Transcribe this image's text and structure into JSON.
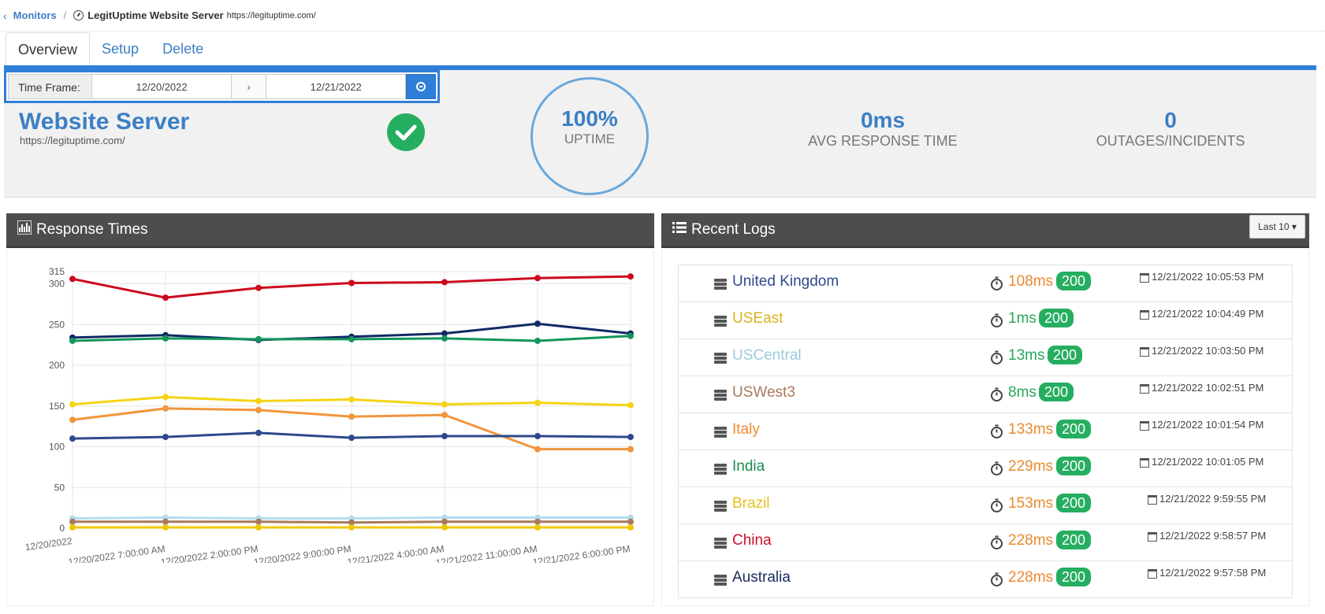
{
  "breadcrumb": {
    "back_link": "Monitors",
    "separator": "/",
    "title": "LegitUptime Website Server",
    "url": "https://legituptime.com/"
  },
  "tabs": [
    {
      "label": "Overview",
      "active": true
    },
    {
      "label": "Setup",
      "active": false
    },
    {
      "label": "Delete",
      "active": false
    }
  ],
  "timeframe": {
    "label": "Time Frame:",
    "start": "12/20/2022",
    "arrow": "›",
    "end": "12/21/2022"
  },
  "summary": {
    "name": "Website Server",
    "url": "https://legituptime.com/",
    "status": "up",
    "uptime_value": "100%",
    "uptime_label": "UPTIME",
    "avg_response_value": "0ms",
    "avg_response_label": "AVG RESPONSE TIME",
    "outages_value": "0",
    "outages_label": "OUTAGES/INCIDENTS"
  },
  "response_panel": {
    "title": "Response Times",
    "icon": "chart-icon"
  },
  "logs_panel": {
    "title": "Recent Logs",
    "icon": "list-icon",
    "filter": "Last 10 ▾"
  },
  "logs": [
    {
      "location": "United Kingdom",
      "loc_color": "#2e4a8c",
      "ms": "108ms",
      "ms_color": "#e88a2e",
      "code": "200",
      "time": "12/21/2022 10:05:53 PM"
    },
    {
      "location": "USEast",
      "loc_color": "#e0b020",
      "ms": "1ms",
      "ms_color": "#26a65b",
      "code": "200",
      "time": "12/21/2022 10:04:49 PM"
    },
    {
      "location": "USCentral",
      "loc_color": "#9ccbe0",
      "ms": "13ms",
      "ms_color": "#26a65b",
      "code": "200",
      "time": "12/21/2022 10:03:50 PM"
    },
    {
      "location": "USWest3",
      "loc_color": "#a87a5c",
      "ms": "8ms",
      "ms_color": "#26a65b",
      "code": "200",
      "time": "12/21/2022 10:02:51 PM"
    },
    {
      "location": "Italy",
      "loc_color": "#f08a2e",
      "ms": "133ms",
      "ms_color": "#e88a2e",
      "code": "200",
      "time": "12/21/2022 10:01:54 PM"
    },
    {
      "location": "India",
      "loc_color": "#1e8c4e",
      "ms": "229ms",
      "ms_color": "#e88a2e",
      "code": "200",
      "time": "12/21/2022 10:01:05 PM"
    },
    {
      "location": "Brazil",
      "loc_color": "#e6c01e",
      "ms": "153ms",
      "ms_color": "#e88a2e",
      "code": "200",
      "time": "12/21/2022 9:59:55 PM"
    },
    {
      "location": "China",
      "loc_color": "#c8102e",
      "ms": "228ms",
      "ms_color": "#e88a2e",
      "code": "200",
      "time": "12/21/2022 9:58:57 PM"
    },
    {
      "location": "Australia",
      "loc_color": "#1c2b5a",
      "ms": "228ms",
      "ms_color": "#e88a2e",
      "code": "200",
      "time": "12/21/2022 9:57:58 PM"
    }
  ],
  "chart_data": {
    "type": "line",
    "title": "",
    "xlabel": "",
    "ylabel": "",
    "ylim": [
      0,
      315
    ],
    "yticks": [
      0,
      50,
      100,
      150,
      200,
      250,
      300,
      315
    ],
    "categories": [
      "12/20/2022",
      "12/20/2022 7:00:00 AM",
      "12/20/2022 2:00:00 PM",
      "12/20/2022 9:00:00 PM",
      "12/21/2022 4:00:00 AM",
      "12/21/2022 11:00:00 AM",
      "12/21/2022 6:00:00 PM"
    ],
    "grid": true,
    "series": [
      {
        "color": "#cc0a1e",
        "values": [
          306,
          283,
          295,
          301,
          302,
          307,
          309
        ]
      },
      {
        "color": "#0f2a66",
        "values": [
          234,
          237,
          231,
          235,
          239,
          251,
          239
        ]
      },
      {
        "color": "#14955a",
        "values": [
          230,
          233,
          232,
          232,
          233,
          230,
          236
        ]
      },
      {
        "color": "#f5d415",
        "values": [
          152,
          161,
          156,
          158,
          152,
          154,
          151
        ]
      },
      {
        "color": "#f0963c",
        "values": [
          133,
          147,
          145,
          137,
          139,
          97,
          97
        ]
      },
      {
        "color": "#2e4a8c",
        "values": [
          110,
          112,
          117,
          111,
          113,
          113,
          112
        ]
      },
      {
        "color": "#b5dcee",
        "values": [
          12,
          13,
          12,
          12,
          13,
          13,
          13
        ]
      },
      {
        "color": "#a87a5c",
        "values": [
          8,
          8,
          8,
          7,
          8,
          8,
          8
        ]
      },
      {
        "color": "#f0c800",
        "values": [
          1,
          1,
          1,
          1,
          1,
          1,
          1
        ]
      }
    ]
  }
}
